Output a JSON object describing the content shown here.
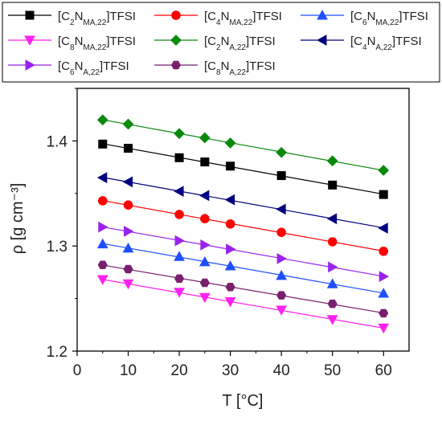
{
  "chart_data": {
    "type": "scatter",
    "xlabel": "T [°C]",
    "ylabel": "ρ [g cm⁻³]",
    "xlim": [
      0,
      65
    ],
    "ylim": [
      1.2,
      1.45
    ],
    "xticks": [
      "0",
      "10",
      "20",
      "30",
      "40",
      "50",
      "60"
    ],
    "yticks": [
      "1.2",
      "1.3",
      "1.4"
    ],
    "x": [
      5,
      10,
      20,
      25,
      30,
      40,
      50,
      60
    ],
    "legend_position": "top",
    "fit_lines": true,
    "series": [
      {
        "name": "[C2NMA,22]TFSI",
        "legend": {
          "pre": "[C",
          "s1": "2",
          "mid": "N",
          "s2": "MA,22",
          "post": "]TFSI"
        },
        "color": "#000000",
        "marker": "square",
        "values": [
          1.397,
          1.393,
          1.384,
          1.38,
          1.376,
          1.367,
          1.358,
          1.349
        ]
      },
      {
        "name": "[C4NMA,22]TFSI",
        "legend": {
          "pre": "[C",
          "s1": "4",
          "mid": "N",
          "s2": "MA,22",
          "post": "]TFSI"
        },
        "color": "#ff0000",
        "marker": "circle",
        "values": [
          1.343,
          1.339,
          1.33,
          1.326,
          1.321,
          1.313,
          1.304,
          1.295
        ]
      },
      {
        "name": "[C6NMA,22]TFSI",
        "legend": {
          "pre": "[C",
          "s1": "6",
          "mid": "N",
          "s2": "MA,22",
          "post": "]TFSI"
        },
        "color": "#1f4fff",
        "marker": "triangle-up",
        "values": [
          1.302,
          1.298,
          1.29,
          1.285,
          1.281,
          1.272,
          1.264,
          1.255
        ]
      },
      {
        "name": "[C8NMA,22]TFSI",
        "legend": {
          "pre": "[C",
          "s1": "8",
          "mid": "N",
          "s2": "MA,22",
          "post": "]TFSI"
        },
        "color": "#ff22ee",
        "marker": "triangle-down",
        "values": [
          1.268,
          1.264,
          1.256,
          1.251,
          1.247,
          1.239,
          1.23,
          1.222
        ]
      },
      {
        "name": "[C2NA,22]TFSI",
        "legend": {
          "pre": "[C",
          "s1": "2",
          "mid": "N",
          "s2": "A,22",
          "post": "]TFSI"
        },
        "color": "#0a8a0a",
        "marker": "diamond",
        "values": [
          1.42,
          1.416,
          1.407,
          1.403,
          1.398,
          1.389,
          1.381,
          1.372
        ]
      },
      {
        "name": "[C4NA,22]TFSI",
        "legend": {
          "pre": "[C",
          "s1": "4",
          "mid": "N",
          "s2": "A,22",
          "post": "]TFSI"
        },
        "color": "#000080",
        "marker": "triangle-left",
        "values": [
          1.365,
          1.361,
          1.352,
          1.348,
          1.344,
          1.335,
          1.326,
          1.317
        ]
      },
      {
        "name": "[C6NA,22]TFSI",
        "legend": {
          "pre": "[C",
          "s1": "6",
          "mid": "N",
          "s2": "A,22",
          "post": "]TFSI"
        },
        "color": "#9a22ee",
        "marker": "triangle-right",
        "values": [
          1.318,
          1.314,
          1.305,
          1.301,
          1.297,
          1.288,
          1.28,
          1.271
        ]
      },
      {
        "name": "[C8NA,22]TFSI",
        "legend": {
          "pre": "[C",
          "s1": "8",
          "mid": "N",
          "s2": "A,22",
          "post": "]TFSI"
        },
        "color": "#7a1f6e",
        "marker": "hexagon",
        "values": [
          1.282,
          1.278,
          1.269,
          1.265,
          1.261,
          1.253,
          1.245,
          1.236
        ]
      }
    ]
  }
}
